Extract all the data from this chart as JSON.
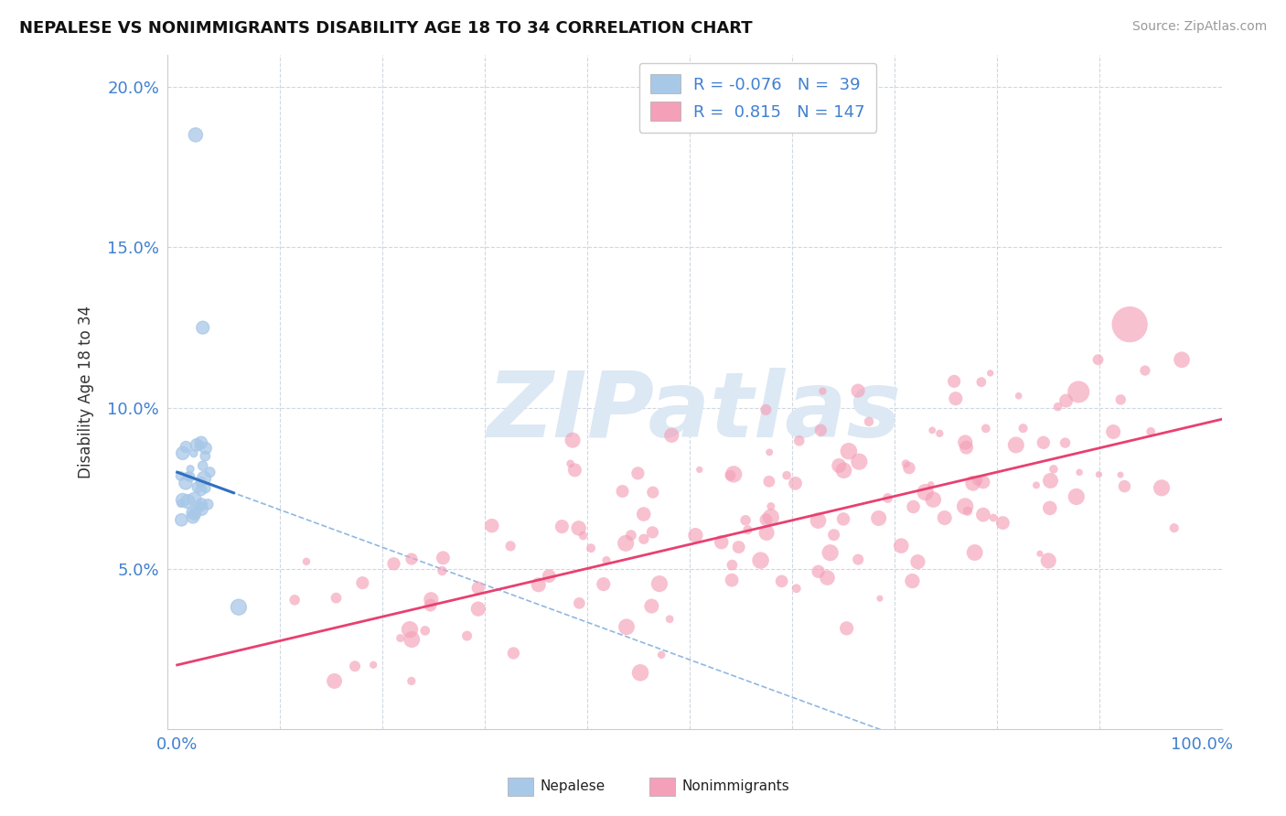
{
  "title": "NEPALESE VS NONIMMIGRANTS DISABILITY AGE 18 TO 34 CORRELATION CHART",
  "source": "Source: ZipAtlas.com",
  "ylabel": "Disability Age 18 to 34",
  "xlim": [
    -0.01,
    1.02
  ],
  "ylim": [
    0.0,
    0.21
  ],
  "xticks": [
    0.0,
    0.1,
    0.2,
    0.3,
    0.4,
    0.5,
    0.6,
    0.7,
    0.8,
    0.9,
    1.0
  ],
  "xticklabels": [
    "0.0%",
    "",
    "",
    "",
    "",
    "",
    "",
    "",
    "",
    "",
    "100.0%"
  ],
  "yticks": [
    0.0,
    0.05,
    0.1,
    0.15,
    0.2
  ],
  "yticklabels": [
    "",
    "5.0%",
    "10.0%",
    "15.0%",
    "20.0%"
  ],
  "blue_R": "-0.076",
  "blue_N": "39",
  "pink_R": "0.815",
  "pink_N": "147",
  "nepalese_color": "#a8c8e8",
  "nonimmigrants_color": "#f4a0b8",
  "regression_blue_color": "#3070c0",
  "regression_pink_color": "#e84070",
  "regression_blue_dashed_color": "#90b8e0",
  "grid_color": "#d0d8e0",
  "title_color": "#111111",
  "axis_label_color": "#4080d0",
  "watermark_color": "#dce8f4",
  "watermark_text": "ZIPatlas",
  "background_color": "#ffffff",
  "seed": 99,
  "legend_blue_color": "#a8c8e8",
  "legend_pink_color": "#f4a0b8"
}
